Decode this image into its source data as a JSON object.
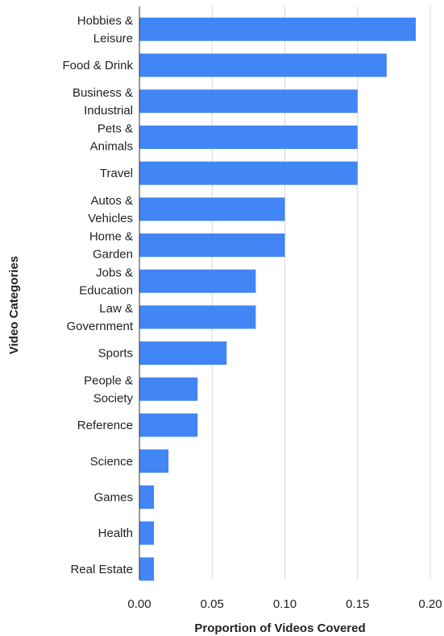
{
  "chart_data": {
    "type": "bar",
    "orientation": "horizontal",
    "title": "",
    "xlabel": "Proportion of Videos Covered",
    "ylabel": "Video Categories",
    "xlim": [
      0,
      0.2
    ],
    "x_ticks": [
      0.0,
      0.05,
      0.1,
      0.15,
      0.2
    ],
    "x_tick_labels": [
      "0.00",
      "0.05",
      "0.10",
      "0.15",
      "0.20"
    ],
    "grid": "vertical",
    "bar_color": "#4285f4",
    "categories": [
      [
        "Hobbies &",
        "Leisure"
      ],
      [
        "Food & Drink"
      ],
      [
        "Business &",
        "Industrial"
      ],
      [
        "Pets &",
        "Animals"
      ],
      [
        "Travel"
      ],
      [
        "Autos &",
        "Vehicles"
      ],
      [
        "Home &",
        "Garden"
      ],
      [
        "Jobs &",
        "Education"
      ],
      [
        "Law &",
        "Government"
      ],
      [
        "Sports"
      ],
      [
        "People &",
        "Society"
      ],
      [
        "Reference"
      ],
      [
        "Science"
      ],
      [
        "Games"
      ],
      [
        "Health"
      ],
      [
        "Real Estate"
      ]
    ],
    "values": [
      0.19,
      0.17,
      0.15,
      0.15,
      0.15,
      0.1,
      0.1,
      0.08,
      0.08,
      0.06,
      0.04,
      0.04,
      0.02,
      0.01,
      0.01,
      0.01
    ]
  }
}
